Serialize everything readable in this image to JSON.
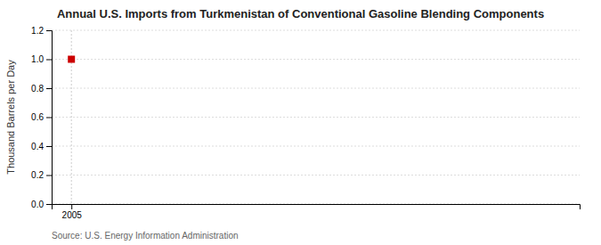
{
  "chart_data": {
    "type": "scatter",
    "title": "Annual U.S. Imports from Turkmenistan of Conventional Gasoline Blending Components",
    "y_label": "Thousand Barrels per Day",
    "source": "Source: U.S. Energy Information Administration",
    "x": [
      2005
    ],
    "values": [
      1.0
    ],
    "color": "#cc0000",
    "marker": "square",
    "xlim": [
      2004.3,
      2023
    ],
    "xticks": [
      2005
    ],
    "ylim": [
      0.0,
      1.2
    ],
    "yticks": [
      {
        "value": 0.0,
        "label": "0.0"
      },
      0.2,
      0.4,
      0.6,
      0.8,
      {
        "value": 1.0,
        "label": "1.0"
      },
      1.2
    ],
    "grid": true
  }
}
